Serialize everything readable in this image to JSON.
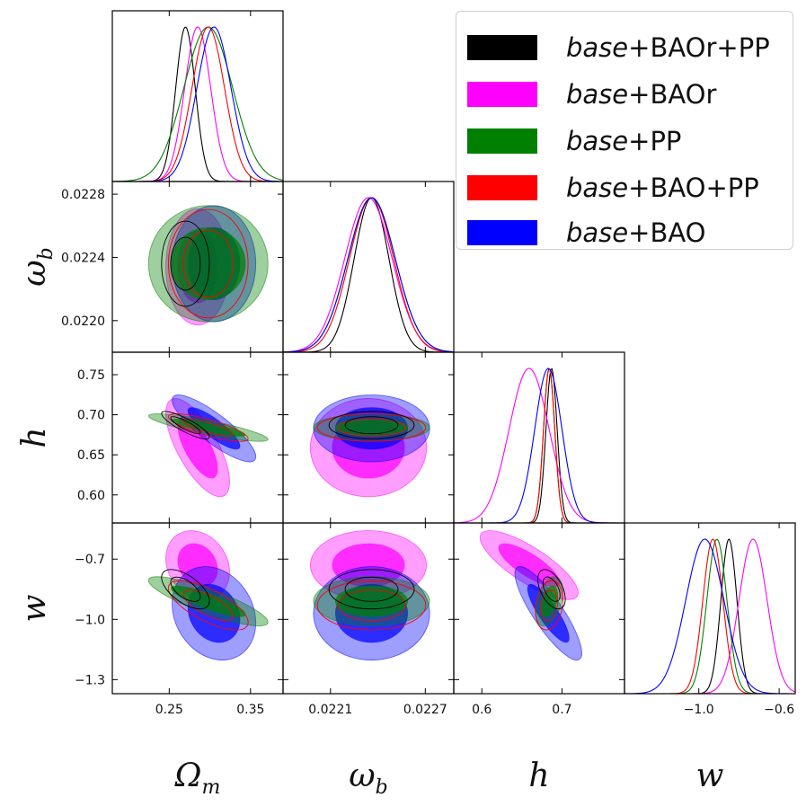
{
  "chart_data": {
    "type": "triangle-corner",
    "parameters": [
      "Omega_m",
      "omega_b",
      "h",
      "w"
    ],
    "axis_labels": {
      "Omega_m": {
        "base": "Ω",
        "sub": "m"
      },
      "omega_b": {
        "base": "ω",
        "sub": "b"
      },
      "h": {
        "base": "h",
        "sub": ""
      },
      "w": {
        "base": "w",
        "sub": ""
      }
    },
    "ranges": {
      "Omega_m": [
        0.18,
        0.39
      ],
      "omega_b": [
        0.0218,
        0.02288
      ],
      "h": [
        0.565,
        0.778
      ],
      "w": [
        -1.37,
        -0.52
      ]
    },
    "ticks": {
      "Omega_m": {
        "values": [
          0.25,
          0.35
        ],
        "labels": [
          "0.25",
          "0.35"
        ]
      },
      "omega_b": {
        "values": [
          0.0221,
          0.0227
        ],
        "labels": [
          "0.0221",
          "0.0227"
        ]
      },
      "omega_b_left": {
        "values": [
          0.0228,
          0.0224,
          0.022
        ],
        "labels": [
          "0.0228",
          "0.0224",
          "0.0220"
        ]
      },
      "h": {
        "values": [
          0.6,
          0.7
        ],
        "labels": [
          "0.6",
          "0.7"
        ]
      },
      "h_left": {
        "values": [
          0.75,
          0.7,
          0.65,
          0.6
        ],
        "labels": [
          "0.75",
          "0.70",
          "0.65",
          "0.60"
        ]
      },
      "w": {
        "values": [
          -1.0,
          -0.6
        ],
        "labels": [
          "−1.0",
          "−0.6"
        ]
      },
      "w_left": {
        "values": [
          -0.7,
          -1.0,
          -1.3
        ],
        "labels": [
          "−0.7",
          "−1.0",
          "−1.3"
        ]
      }
    },
    "legend_placement": "top-right",
    "series": [
      {
        "name": "base+BAOr+PP",
        "prefix": "base",
        "suffix": "+BAOr+PP",
        "color": "#000000",
        "outline_only": true,
        "mean": {
          "Omega_m": 0.27,
          "omega_b": 0.02236,
          "h": 0.687,
          "w": -0.85
        },
        "sigma": {
          "Omega_m": 0.012,
          "omega_b": 0.00011,
          "h": 0.007,
          "w": 0.04
        },
        "corr": {
          "Omega_m|h": -0.85,
          "Omega_m|w": -0.6,
          "h|w": -0.5
        }
      },
      {
        "name": "base+BAOr",
        "prefix": "base",
        "suffix": "+BAOr",
        "color": "#ff00ff",
        "outline_only": false,
        "mean": {
          "Omega_m": 0.285,
          "omega_b": 0.02234,
          "h": 0.659,
          "w": -0.73
        },
        "sigma": {
          "Omega_m": 0.016,
          "omega_b": 0.00015,
          "h": 0.025,
          "w": 0.07
        },
        "corr": {
          "Omega_m|h": -0.7,
          "Omega_m|w": -0.2,
          "h|w": -0.8
        }
      },
      {
        "name": "base+PP",
        "prefix": "base",
        "suffix": "+PP",
        "color": "#008000",
        "outline_only": false,
        "mean": {
          "Omega_m": 0.298,
          "omega_b": 0.02236,
          "h": 0.684,
          "w": -0.91
        },
        "sigma": {
          "Omega_m": 0.03,
          "omega_b": 0.00015,
          "h": 0.007,
          "w": 0.05
        },
        "corr": {
          "Omega_m|h": -0.85,
          "Omega_m|w": -0.85,
          "h|w": 0.4
        }
      },
      {
        "name": "base+BAO+PP",
        "prefix": "base",
        "suffix": "+BAO+PP",
        "color": "#ff0000",
        "outline_only": true,
        "mean": {
          "Omega_m": 0.298,
          "omega_b": 0.02236,
          "h": 0.684,
          "w": -0.93
        },
        "sigma": {
          "Omega_m": 0.02,
          "omega_b": 0.00014,
          "h": 0.007,
          "w": 0.05
        },
        "corr": {
          "Omega_m|h": -0.8,
          "Omega_m|w": -0.7,
          "h|w": 0.2
        }
      },
      {
        "name": "base+BAO",
        "prefix": "base",
        "suffix": "+BAO",
        "color": "#0000ff",
        "outline_only": false,
        "mean": {
          "Omega_m": 0.305,
          "omega_b": 0.02236,
          "h": 0.683,
          "w": -0.97
        },
        "sigma": {
          "Omega_m": 0.021,
          "omega_b": 0.00015,
          "h": 0.017,
          "w": 0.095
        },
        "corr": {
          "Omega_m|h": -0.85,
          "Omega_m|w": -0.2,
          "h|w": -0.85
        }
      }
    ]
  }
}
